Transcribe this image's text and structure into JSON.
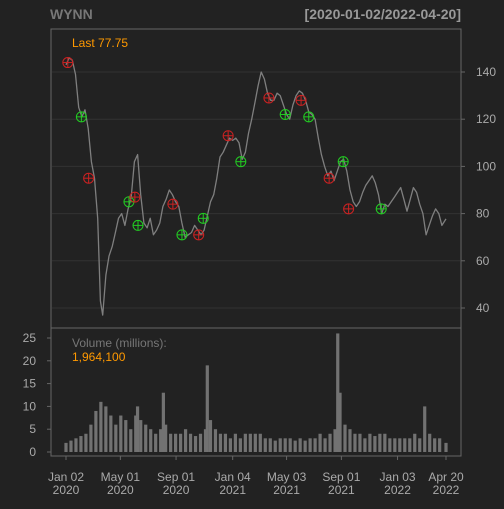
{
  "header": {
    "symbol": "WYNN",
    "range": "[2020-01-02/2022-04-20]"
  },
  "price_panel": {
    "last_label": "Last 77.75"
  },
  "volume_panel": {
    "title": "Volume (millions):",
    "last_value": "1,964,100"
  },
  "colors": {
    "background": "#222222",
    "panel_border": "#666666",
    "gridline": "#333333",
    "price_series": "#7f7f7f",
    "volume_bars": "#727272",
    "accent_orange": "#ff9900",
    "tick_text": "#aaaaaa",
    "title_text": "#777777",
    "marker_buy": "#22cc22",
    "marker_sell": "#cc2222"
  },
  "chart_data": [
    {
      "type": "line",
      "name": "price",
      "x_type": "date",
      "xlim": [
        "2020-01-02",
        "2022-04-20"
      ],
      "ylim": [
        32,
        152
      ],
      "yticks": [
        40,
        60,
        80,
        100,
        120,
        140
      ],
      "grid": true,
      "points": [
        [
          "2020-01-02",
          143
        ],
        [
          "2020-01-09",
          146
        ],
        [
          "2020-01-16",
          145
        ],
        [
          "2020-01-23",
          139
        ],
        [
          "2020-01-30",
          125
        ],
        [
          "2020-02-06",
          121
        ],
        [
          "2020-02-13",
          124
        ],
        [
          "2020-02-20",
          116
        ],
        [
          "2020-02-27",
          102
        ],
        [
          "2020-03-05",
          95
        ],
        [
          "2020-03-12",
          78
        ],
        [
          "2020-03-18",
          43
        ],
        [
          "2020-03-23",
          37
        ],
        [
          "2020-03-30",
          54
        ],
        [
          "2020-04-06",
          62
        ],
        [
          "2020-04-13",
          66
        ],
        [
          "2020-04-20",
          72
        ],
        [
          "2020-04-27",
          78
        ],
        [
          "2020-05-04",
          80
        ],
        [
          "2020-05-11",
          75
        ],
        [
          "2020-05-18",
          82
        ],
        [
          "2020-05-25",
          87
        ],
        [
          "2020-06-01",
          102
        ],
        [
          "2020-06-08",
          105
        ],
        [
          "2020-06-15",
          88
        ],
        [
          "2020-06-22",
          76
        ],
        [
          "2020-06-29",
          74
        ],
        [
          "2020-07-06",
          78
        ],
        [
          "2020-07-13",
          71
        ],
        [
          "2020-07-20",
          73
        ],
        [
          "2020-07-27",
          76
        ],
        [
          "2020-08-03",
          83
        ],
        [
          "2020-08-10",
          86
        ],
        [
          "2020-08-17",
          90
        ],
        [
          "2020-08-24",
          88
        ],
        [
          "2020-08-31",
          85
        ],
        [
          "2020-09-07",
          83
        ],
        [
          "2020-09-14",
          76
        ],
        [
          "2020-09-21",
          70
        ],
        [
          "2020-09-28",
          71
        ],
        [
          "2020-10-05",
          72
        ],
        [
          "2020-10-12",
          75
        ],
        [
          "2020-10-19",
          73
        ],
        [
          "2020-10-26",
          71
        ],
        [
          "2020-11-02",
          73
        ],
        [
          "2020-11-09",
          79
        ],
        [
          "2020-11-16",
          85
        ],
        [
          "2020-11-23",
          88
        ],
        [
          "2020-11-30",
          95
        ],
        [
          "2020-12-07",
          104
        ],
        [
          "2020-12-14",
          106
        ],
        [
          "2020-12-21",
          109
        ],
        [
          "2020-12-28",
          112
        ],
        [
          "2021-01-04",
          111
        ],
        [
          "2021-01-11",
          112
        ],
        [
          "2021-01-18",
          110
        ],
        [
          "2021-01-25",
          103
        ],
        [
          "2021-02-01",
          106
        ],
        [
          "2021-02-08",
          114
        ],
        [
          "2021-02-15",
          120
        ],
        [
          "2021-02-22",
          127
        ],
        [
          "2021-03-01",
          134
        ],
        [
          "2021-03-08",
          140
        ],
        [
          "2021-03-15",
          137
        ],
        [
          "2021-03-22",
          131
        ],
        [
          "2021-03-29",
          128
        ],
        [
          "2021-04-05",
          128
        ],
        [
          "2021-04-12",
          131
        ],
        [
          "2021-04-19",
          130
        ],
        [
          "2021-04-26",
          126
        ],
        [
          "2021-05-03",
          122
        ],
        [
          "2021-05-10",
          120
        ],
        [
          "2021-05-17",
          126
        ],
        [
          "2021-05-24",
          130
        ],
        [
          "2021-05-31",
          132
        ],
        [
          "2021-06-07",
          131
        ],
        [
          "2021-06-14",
          128
        ],
        [
          "2021-06-21",
          123
        ],
        [
          "2021-06-28",
          122
        ],
        [
          "2021-07-05",
          120
        ],
        [
          "2021-07-12",
          112
        ],
        [
          "2021-07-19",
          105
        ],
        [
          "2021-07-26",
          100
        ],
        [
          "2021-08-02",
          96
        ],
        [
          "2021-08-09",
          98
        ],
        [
          "2021-08-16",
          94
        ],
        [
          "2021-08-23",
          98
        ],
        [
          "2021-08-30",
          102
        ],
        [
          "2021-09-06",
          103
        ],
        [
          "2021-09-13",
          98
        ],
        [
          "2021-09-20",
          90
        ],
        [
          "2021-09-27",
          85
        ],
        [
          "2021-10-04",
          83
        ],
        [
          "2021-10-11",
          85
        ],
        [
          "2021-10-18",
          89
        ],
        [
          "2021-10-25",
          92
        ],
        [
          "2021-11-01",
          94
        ],
        [
          "2021-11-08",
          96
        ],
        [
          "2021-11-15",
          93
        ],
        [
          "2021-11-22",
          88
        ],
        [
          "2021-11-29",
          80
        ],
        [
          "2021-12-06",
          84
        ],
        [
          "2021-12-13",
          83
        ],
        [
          "2021-12-20",
          85
        ],
        [
          "2021-12-27",
          87
        ],
        [
          "2022-01-03",
          89
        ],
        [
          "2022-01-10",
          91
        ],
        [
          "2022-01-17",
          86
        ],
        [
          "2022-01-24",
          81
        ],
        [
          "2022-01-31",
          86
        ],
        [
          "2022-02-07",
          91
        ],
        [
          "2022-02-14",
          89
        ],
        [
          "2022-02-21",
          84
        ],
        [
          "2022-02-28",
          80
        ],
        [
          "2022-03-07",
          71
        ],
        [
          "2022-03-14",
          75
        ],
        [
          "2022-03-21",
          79
        ],
        [
          "2022-03-28",
          82
        ],
        [
          "2022-04-04",
          80
        ],
        [
          "2022-04-11",
          75
        ],
        [
          "2022-04-20",
          77.75
        ]
      ]
    },
    {
      "type": "bar",
      "name": "volume",
      "x_type": "date",
      "ylim": [
        0,
        27
      ],
      "yticks": [
        0,
        5,
        10,
        15,
        20,
        25
      ],
      "points": [
        [
          "2020-01-02",
          2
        ],
        [
          "2020-01-13",
          2.5
        ],
        [
          "2020-01-24",
          3
        ],
        [
          "2020-02-04",
          3.5
        ],
        [
          "2020-02-15",
          4
        ],
        [
          "2020-02-26",
          6
        ],
        [
          "2020-03-08",
          9
        ],
        [
          "2020-03-19",
          11
        ],
        [
          "2020-03-30",
          10
        ],
        [
          "2020-04-10",
          8
        ],
        [
          "2020-04-21",
          6
        ],
        [
          "2020-05-02",
          8
        ],
        [
          "2020-05-13",
          7
        ],
        [
          "2020-05-24",
          5
        ],
        [
          "2020-06-04",
          8
        ],
        [
          "2020-06-08",
          10
        ],
        [
          "2020-06-15",
          7
        ],
        [
          "2020-06-26",
          6
        ],
        [
          "2020-07-07",
          5
        ],
        [
          "2020-07-18",
          4
        ],
        [
          "2020-07-29",
          5
        ],
        [
          "2020-08-04",
          13
        ],
        [
          "2020-08-09",
          6
        ],
        [
          "2020-08-20",
          4
        ],
        [
          "2020-08-31",
          4
        ],
        [
          "2020-09-11",
          4
        ],
        [
          "2020-09-22",
          5
        ],
        [
          "2020-10-03",
          4
        ],
        [
          "2020-10-14",
          3.5
        ],
        [
          "2020-10-25",
          4
        ],
        [
          "2020-11-05",
          5
        ],
        [
          "2020-11-09",
          19
        ],
        [
          "2020-11-16",
          7
        ],
        [
          "2020-11-27",
          5
        ],
        [
          "2020-12-08",
          4
        ],
        [
          "2020-12-19",
          4
        ],
        [
          "2020-12-30",
          3
        ],
        [
          "2021-01-10",
          4
        ],
        [
          "2021-01-21",
          3
        ],
        [
          "2021-02-01",
          4
        ],
        [
          "2021-02-12",
          4
        ],
        [
          "2021-02-23",
          4
        ],
        [
          "2021-03-06",
          4
        ],
        [
          "2021-03-17",
          3
        ],
        [
          "2021-03-28",
          3
        ],
        [
          "2021-04-08",
          2.5
        ],
        [
          "2021-04-19",
          3
        ],
        [
          "2021-04-30",
          3
        ],
        [
          "2021-05-11",
          3
        ],
        [
          "2021-05-22",
          2.5
        ],
        [
          "2021-06-02",
          3
        ],
        [
          "2021-06-13",
          2.5
        ],
        [
          "2021-06-24",
          3
        ],
        [
          "2021-07-05",
          3
        ],
        [
          "2021-07-16",
          4
        ],
        [
          "2021-07-27",
          3
        ],
        [
          "2021-08-07",
          4
        ],
        [
          "2021-08-18",
          5
        ],
        [
          "2021-08-24",
          26
        ],
        [
          "2021-08-29",
          13
        ],
        [
          "2021-09-09",
          6
        ],
        [
          "2021-09-20",
          5
        ],
        [
          "2021-10-01",
          4
        ],
        [
          "2021-10-12",
          4
        ],
        [
          "2021-10-23",
          3
        ],
        [
          "2021-11-03",
          4
        ],
        [
          "2021-11-14",
          3.5
        ],
        [
          "2021-11-25",
          4
        ],
        [
          "2021-12-06",
          4
        ],
        [
          "2021-12-17",
          3
        ],
        [
          "2021-12-28",
          3
        ],
        [
          "2022-01-08",
          3
        ],
        [
          "2022-01-19",
          3
        ],
        [
          "2022-01-30",
          3
        ],
        [
          "2022-02-10",
          4
        ],
        [
          "2022-02-21",
          3
        ],
        [
          "2022-03-04",
          10
        ],
        [
          "2022-03-15",
          4
        ],
        [
          "2022-03-26",
          3
        ],
        [
          "2022-04-06",
          3
        ],
        [
          "2022-04-20",
          2
        ]
      ]
    },
    {
      "type": "scatter",
      "name": "signals",
      "x_type": "date",
      "points": [
        {
          "date": "2020-01-06",
          "value": 144,
          "kind": "sell"
        },
        {
          "date": "2020-02-05",
          "value": 121,
          "kind": "buy"
        },
        {
          "date": "2020-02-21",
          "value": 95,
          "kind": "sell"
        },
        {
          "date": "2020-05-20",
          "value": 85,
          "kind": "buy"
        },
        {
          "date": "2020-06-02",
          "value": 87,
          "kind": "sell"
        },
        {
          "date": "2020-06-09",
          "value": 75,
          "kind": "buy"
        },
        {
          "date": "2020-08-25",
          "value": 84,
          "kind": "sell"
        },
        {
          "date": "2020-09-14",
          "value": 71,
          "kind": "buy"
        },
        {
          "date": "2020-10-21",
          "value": 71,
          "kind": "sell"
        },
        {
          "date": "2020-10-31",
          "value": 78,
          "kind": "buy"
        },
        {
          "date": "2020-12-25",
          "value": 113,
          "kind": "sell"
        },
        {
          "date": "2021-01-22",
          "value": 102,
          "kind": "buy"
        },
        {
          "date": "2021-03-25",
          "value": 129,
          "kind": "sell"
        },
        {
          "date": "2021-04-30",
          "value": 122,
          "kind": "buy"
        },
        {
          "date": "2021-06-04",
          "value": 128,
          "kind": "sell"
        },
        {
          "date": "2021-06-21",
          "value": 121,
          "kind": "buy"
        },
        {
          "date": "2021-08-05",
          "value": 95,
          "kind": "sell"
        },
        {
          "date": "2021-09-05",
          "value": 102,
          "kind": "buy"
        },
        {
          "date": "2021-09-17",
          "value": 82,
          "kind": "sell"
        },
        {
          "date": "2021-11-28",
          "value": 82,
          "kind": "buy"
        }
      ]
    }
  ],
  "x_axis": {
    "ticks": [
      {
        "date": "2020-01-02",
        "label1": "Jan 02",
        "label2": "2020"
      },
      {
        "date": "2020-05-01",
        "label1": "May 01",
        "label2": "2020"
      },
      {
        "date": "2020-09-01",
        "label1": "Sep 01",
        "label2": "2020"
      },
      {
        "date": "2021-01-04",
        "label1": "Jan 04",
        "label2": "2021"
      },
      {
        "date": "2021-05-03",
        "label1": "May 03",
        "label2": "2021"
      },
      {
        "date": "2021-09-01",
        "label1": "Sep 01",
        "label2": "2021"
      },
      {
        "date": "2022-01-03",
        "label1": "Jan 03",
        "label2": "2022"
      },
      {
        "date": "2022-04-20",
        "label1": "Apr 20",
        "label2": "2022"
      }
    ]
  }
}
